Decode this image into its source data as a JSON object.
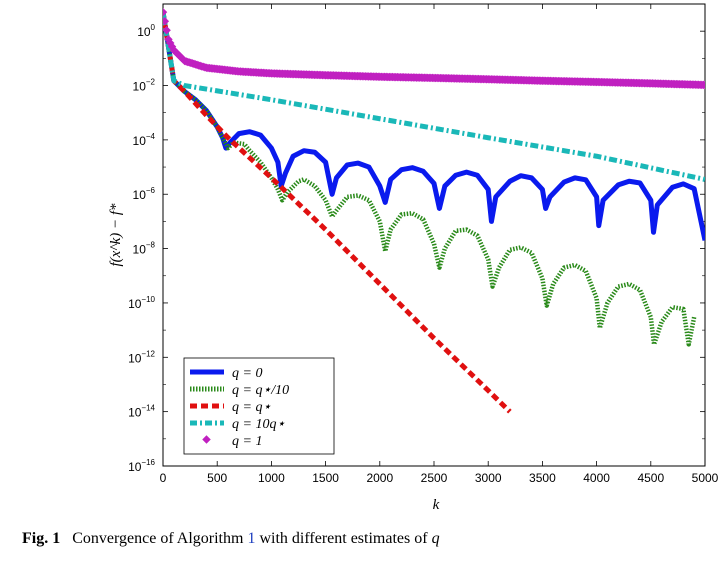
{
  "chart_data": {
    "type": "line",
    "xlabel": "k",
    "ylabel": "f(x^k) − f*",
    "xlim": [
      0,
      5000
    ],
    "ylim": [
      1e-16,
      10
    ],
    "yscale": "log",
    "x_ticks": [
      "0",
      "500",
      "1000",
      "1500",
      "2000",
      "2500",
      "3000",
      "3500",
      "4000",
      "4500",
      "5000"
    ],
    "y_ticks": [
      {
        "base": "10",
        "exp": "0",
        "value": 1
      },
      {
        "base": "10",
        "exp": "−2",
        "value": 0.01
      },
      {
        "base": "10",
        "exp": "−4",
        "value": 0.0001
      },
      {
        "base": "10",
        "exp": "−6",
        "value": 1e-06
      },
      {
        "base": "10",
        "exp": "−8",
        "value": 1e-08
      },
      {
        "base": "10",
        "exp": "−10",
        "value": 1e-10
      },
      {
        "base": "10",
        "exp": "−12",
        "value": 1e-12
      },
      {
        "base": "10",
        "exp": "−14",
        "value": 1e-14
      },
      {
        "base": "10",
        "exp": "−16",
        "value": 1e-16
      }
    ],
    "grid": false,
    "legend_position": "bottom-left",
    "series": [
      {
        "name": "q = 0",
        "color": "#0a1aee",
        "style": "solid",
        "x": [
          0,
          100,
          200,
          300,
          400,
          500,
          550,
          580,
          620,
          700,
          800,
          900,
          1000,
          1060,
          1090,
          1130,
          1200,
          1300,
          1400,
          1500,
          1560,
          1600,
          1700,
          1800,
          1900,
          2000,
          2050,
          2100,
          2200,
          2300,
          2400,
          2500,
          2550,
          2600,
          2700,
          2800,
          2900,
          3000,
          3030,
          3070,
          3200,
          3300,
          3400,
          3500,
          3530,
          3570,
          3700,
          3800,
          3900,
          4000,
          4020,
          4060,
          4200,
          4300,
          4400,
          4500,
          4525,
          4560,
          4700,
          4800,
          4900,
          5000
        ],
        "y": [
          5,
          0.015,
          0.006,
          0.003,
          0.0012,
          0.0003,
          0.00012,
          5e-05,
          8e-05,
          0.00017,
          0.0002,
          0.00015,
          5e-05,
          1.5e-05,
          2e-06,
          6e-06,
          2.5e-05,
          4e-05,
          3.5e-05,
          1.5e-05,
          1e-06,
          4e-06,
          1.2e-05,
          1.4e-05,
          1e-05,
          2e-06,
          5e-07,
          3.5e-06,
          8e-06,
          9.5e-06,
          7e-06,
          2.5e-06,
          3e-07,
          2e-06,
          5e-06,
          6.5e-06,
          5e-06,
          1.5e-06,
          1e-07,
          8e-07,
          3e-06,
          4.8e-06,
          4e-06,
          1.5e-06,
          3e-07,
          8e-07,
          2.8e-06,
          4e-06,
          3.4e-06,
          8e-07,
          7e-08,
          6e-07,
          2.2e-06,
          3e-06,
          2.6e-06,
          6e-07,
          4e-08,
          4e-07,
          1.8e-06,
          2.4e-06,
          1.6e-06,
          2e-08
        ]
      },
      {
        "name": "q = q*/10",
        "color": "#2a8a1a",
        "style": "dotted",
        "x": [
          0,
          100,
          200,
          300,
          400,
          500,
          550,
          600,
          650,
          750,
          800,
          900,
          1000,
          1060,
          1100,
          1150,
          1250,
          1300,
          1400,
          1500,
          1560,
          1600,
          1700,
          1800,
          1900,
          2000,
          2050,
          2100,
          2200,
          2300,
          2400,
          2500,
          2550,
          2600,
          2700,
          2800,
          2900,
          3000,
          3040,
          3100,
          3200,
          3300,
          3400,
          3500,
          3540,
          3600,
          3700,
          3800,
          3900,
          4000,
          4030,
          4100,
          4200,
          4300,
          4400,
          4500,
          4530,
          4600,
          4700,
          4800,
          4850,
          4900
        ],
        "y": [
          5,
          0.015,
          0.006,
          0.003,
          0.0012,
          0.0003,
          0.00012,
          5e-05,
          8e-05,
          7e-05,
          4e-05,
          1.5e-05,
          4e-06,
          1.5e-06,
          6e-07,
          1.2e-06,
          3e-06,
          3.5e-06,
          2e-06,
          6e-07,
          1.5e-07,
          2.5e-07,
          8e-07,
          9e-07,
          6e-07,
          1e-07,
          8e-09,
          5e-08,
          1.8e-07,
          2e-07,
          1.2e-07,
          1.5e-08,
          2e-09,
          1e-08,
          4.5e-08,
          5e-08,
          3e-08,
          4e-09,
          4e-10,
          2e-09,
          9e-09,
          1.1e-08,
          7e-09,
          8e-10,
          8e-11,
          5e-10,
          2e-09,
          2.5e-09,
          1.5e-09,
          1.5e-10,
          1.2e-11,
          1e-10,
          4e-10,
          5e-10,
          3e-10,
          3e-11,
          3e-12,
          2e-11,
          7e-11,
          6e-11,
          3e-12,
          3e-11
        ]
      },
      {
        "name": "q = q*",
        "color": "#e01010",
        "style": "dashed",
        "x": [
          0,
          100,
          200,
          400,
          600,
          1000,
          1500,
          2000,
          2500,
          3000,
          3200
        ],
        "y": [
          5,
          0.015,
          0.006,
          0.0008,
          0.00012,
          4e-06,
          5e-08,
          5e-10,
          5e-12,
          6e-14,
          1e-14
        ]
      },
      {
        "name": "q = 10q*",
        "color": "#1ab8b8",
        "style": "dashdot",
        "x": [
          0,
          100,
          200,
          1000,
          2000,
          3000,
          4000,
          5000
        ],
        "y": [
          5,
          0.015,
          0.01,
          0.003,
          0.0006,
          0.00012,
          2.5e-05,
          3.5e-06
        ]
      },
      {
        "name": "q = 1",
        "color": "#c020c0",
        "style": "markers",
        "x": [
          0,
          50,
          100,
          200,
          400,
          700,
          1000,
          1500,
          2000,
          2500,
          3000,
          3500,
          4000,
          4500,
          5000
        ],
        "y": [
          5,
          0.5,
          0.2,
          0.08,
          0.045,
          0.033,
          0.028,
          0.024,
          0.021,
          0.019,
          0.017,
          0.015,
          0.0135,
          0.012,
          0.0105
        ]
      }
    ]
  },
  "legend": [
    {
      "label": "q = 0"
    },
    {
      "label": "q = q⋆/10"
    },
    {
      "label": "q = q⋆"
    },
    {
      "label": "q = 10q⋆"
    },
    {
      "label": "q = 1"
    }
  ],
  "caption": {
    "fig_label": "Fig. 1",
    "text_before": "Convergence of Algorithm",
    "ref": "1",
    "text_after": "with different estimates of",
    "var": "q"
  }
}
